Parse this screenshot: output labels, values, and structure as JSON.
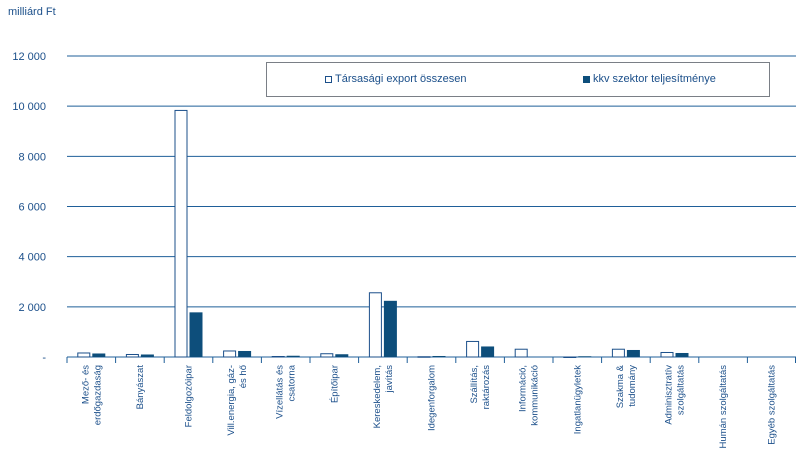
{
  "chart_data": {
    "type": "bar",
    "ylabel": "milliárd Ft",
    "ylim": [
      0,
      12000
    ],
    "yticks": [
      {
        "value": 0,
        "label": "-"
      },
      {
        "value": 2000,
        "label": "2 000"
      },
      {
        "value": 4000,
        "label": "4 000"
      },
      {
        "value": 6000,
        "label": "6 000"
      },
      {
        "value": 8000,
        "label": "8 000"
      },
      {
        "value": 10000,
        "label": "10 000"
      },
      {
        "value": 12000,
        "label": "12 000"
      }
    ],
    "grid": true,
    "legend_position": "top-right",
    "categories": [
      [
        "Mező- és",
        "erdőgazdaság"
      ],
      [
        "Bányászat"
      ],
      [
        "Feldolgozóipar"
      ],
      [
        "Vill.energia, gáz-",
        "és hő"
      ],
      [
        "Vízellátás és",
        "csatorna"
      ],
      [
        "Építőipar"
      ],
      [
        "Kereskedelem,",
        "javítás"
      ],
      [
        "Idegenforgalom"
      ],
      [
        "Szállítás,",
        "raktározás"
      ],
      [
        "Információ,",
        "kommunikáció"
      ],
      [
        "Ingatlanügyletek"
      ],
      [
        "Szakma &",
        "tudomány"
      ],
      [
        "Adminisztratív",
        "szolgáltatás"
      ],
      [
        "Humán szolgáltatás"
      ],
      [
        "Egyéb szolgáltatás"
      ]
    ],
    "series": [
      {
        "name": "Társasági export összesen",
        "style": "open",
        "color": "#1b4f8a",
        "values": [
          180,
          120,
          9850,
          260,
          40,
          150,
          2580,
          30,
          640,
          330,
          20,
          330,
          200,
          0,
          0
        ]
      },
      {
        "name": "kkv szektor teljesítménye",
        "style": "solid",
        "color": "#0d4e7b",
        "values": [
          140,
          100,
          1780,
          240,
          50,
          110,
          2240,
          40,
          420,
          0,
          30,
          280,
          160,
          0,
          0
        ]
      }
    ]
  }
}
